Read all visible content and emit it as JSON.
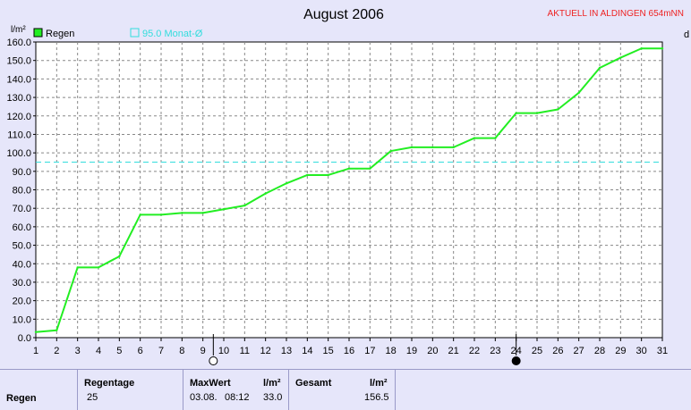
{
  "title": "August 2006",
  "station": "AKTUELL IN ALDINGEN 654mNN",
  "unit_label": "l/m²",
  "right_edge_label": "d",
  "colors": {
    "background": "#e6e6fa",
    "plot_bg": "#ffffff",
    "rain_line": "#22ee22",
    "monthly_mean": "#33dddd",
    "station": "#ee2222",
    "grid": "#888888"
  },
  "legend": {
    "rain": "Regen",
    "mean": "95.0 Monat-Ø"
  },
  "chart_data": {
    "type": "line",
    "title": "August 2006",
    "ylabel": "l/m²",
    "xlabel": "",
    "xlim": [
      1,
      31
    ],
    "ylim": [
      0,
      160
    ],
    "grid": true,
    "legend_position": "top-left",
    "x": [
      1,
      2,
      3,
      4,
      5,
      6,
      7,
      8,
      9,
      10,
      11,
      12,
      13,
      14,
      15,
      16,
      17,
      18,
      19,
      20,
      21,
      22,
      23,
      24,
      25,
      26,
      27,
      28,
      29,
      30,
      31
    ],
    "y_ticks": [
      0,
      10,
      20,
      30,
      40,
      50,
      60,
      70,
      80,
      90,
      100,
      110,
      120,
      130,
      140,
      150,
      160
    ],
    "series": [
      {
        "name": "Regen",
        "color": "#22ee22",
        "values": [
          3.0,
          4.0,
          38.0,
          38.0,
          44.0,
          66.5,
          66.5,
          67.5,
          67.5,
          69.5,
          71.5,
          78.0,
          83.5,
          88.0,
          88.0,
          91.5,
          91.5,
          101.0,
          103.0,
          103.0,
          103.0,
          108.0,
          108.0,
          121.5,
          121.5,
          123.5,
          132.5,
          146.0,
          151.5,
          156.5,
          156.5
        ]
      }
    ],
    "reference_lines": [
      {
        "name": "95.0 Monat-Ø",
        "value": 95.0,
        "color": "#33dddd",
        "style": "dashed"
      }
    ],
    "moon_phases": [
      {
        "day": 9.5,
        "phase": "full-moon"
      },
      {
        "day": 24,
        "phase": "new-moon"
      }
    ]
  },
  "stats": {
    "row_label": "Regen",
    "regentage_header": "Regentage",
    "regentage_value": "25",
    "maxwert_header": "MaxWert",
    "maxwert_unit": "l/m²",
    "maxwert_date": "03.08.",
    "maxwert_time": "08:12",
    "maxwert_value": "33.0",
    "gesamt_header": "Gesamt",
    "gesamt_unit": "l/m²",
    "gesamt_value": "156.5"
  }
}
